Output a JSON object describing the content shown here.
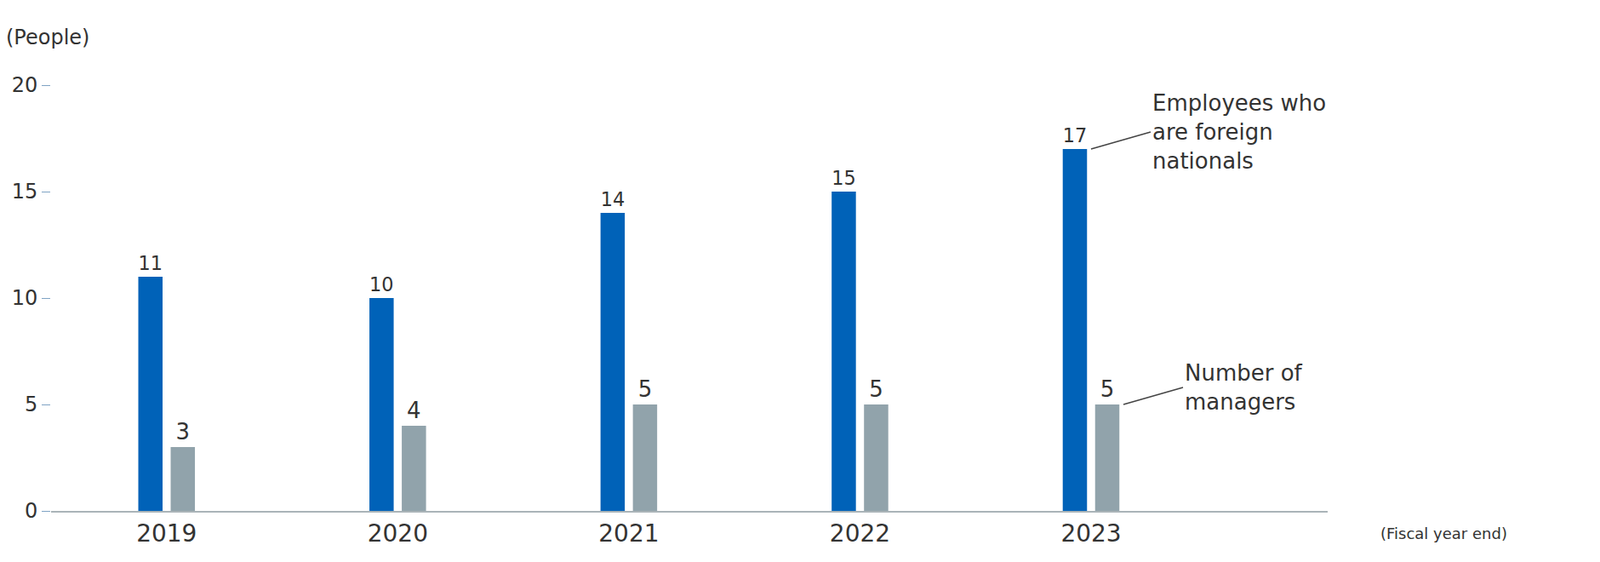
{
  "chart_data": {
    "type": "bar",
    "y_label": "(People)",
    "x_label": "(Fiscal year end)",
    "categories": [
      "2019",
      "2020",
      "2021",
      "2022",
      "2023"
    ],
    "series": [
      {
        "name": "Employees who are foreign nationals",
        "color": "#0062b8",
        "values": [
          11,
          10,
          14,
          15,
          17
        ]
      },
      {
        "name": "Number of managers",
        "color": "#91a3ab",
        "values": [
          3,
          4,
          5,
          5,
          5
        ]
      }
    ],
    "ylim": [
      0,
      20
    ],
    "yticks": [
      0,
      5,
      10,
      15,
      20
    ],
    "grid": false,
    "data_labels": true
  }
}
